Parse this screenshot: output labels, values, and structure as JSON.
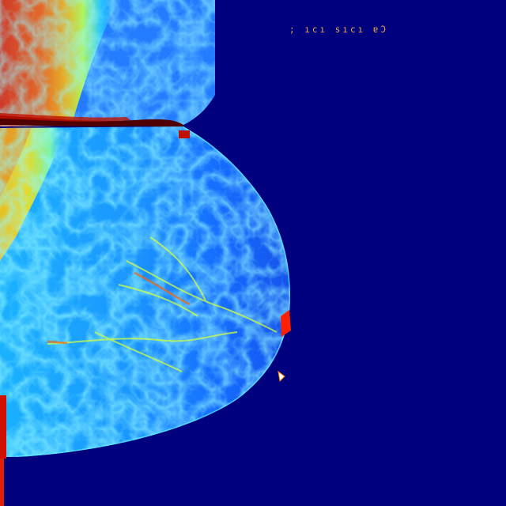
{
  "image": {
    "type": "false-color mammogram",
    "colormap": [
      "#00007f",
      "#0000ff",
      "#00a0ff",
      "#00ffff",
      "#a0ff60",
      "#ffff00",
      "#ff8000",
      "#ff0000",
      "#800000"
    ]
  },
  "overlay": {
    "marker_text": "; ıcı sıcı ɐƆ"
  }
}
